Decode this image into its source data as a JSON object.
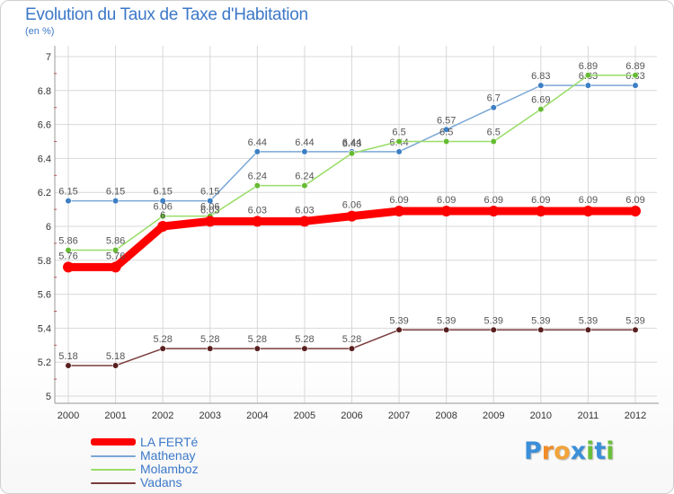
{
  "title": "Evolution du Taux de Taxe d'Habitation",
  "subtitle": "(en %)",
  "brand": {
    "letters": [
      "P",
      "r",
      "o",
      "x",
      "i",
      "t",
      "i"
    ],
    "colors": [
      "#3b8fd9",
      "#f28c28",
      "#f2a33a",
      "#3b8fd9",
      "#6bbf3a",
      "#3b8fd9",
      "#6bbf3a"
    ]
  },
  "chart_data": {
    "type": "line",
    "title": "Evolution du Taux de Taxe d'Habitation",
    "ylabel": "(en %)",
    "xlabel": "",
    "x": [
      "2000",
      "2001",
      "2002",
      "2003",
      "2004",
      "2005",
      "2006",
      "2007",
      "2008",
      "2009",
      "2010",
      "2011",
      "2012"
    ],
    "ylim": [
      5,
      7
    ],
    "yticks": [
      "5",
      "5.2",
      "5.4",
      "5.6",
      "5.8",
      "6",
      "6.2",
      "6.4",
      "6.6",
      "6.8",
      "7"
    ],
    "grid": true,
    "legend_position": "bottom-left",
    "series": [
      {
        "name": "LA FERTé",
        "color": "#ff0000",
        "point_color": "#ff0000",
        "emphasis": "thick",
        "values": [
          5.76,
          5.76,
          6,
          6.03,
          6.03,
          6.03,
          6.06,
          6.09,
          6.09,
          6.09,
          6.09,
          6.09,
          6.09
        ],
        "labels": [
          "5.76",
          "5.76",
          "6",
          "6.03",
          "6.03",
          "6.03",
          "6.06",
          "6.09",
          "6.09",
          "6.09",
          "6.09",
          "6.09",
          "6.09"
        ]
      },
      {
        "name": "Mathenay",
        "color": "#7aa7d6",
        "point_color": "#3c7fc4",
        "emphasis": "normal",
        "values": [
          6.15,
          6.15,
          6.15,
          6.15,
          6.44,
          6.44,
          6.44,
          6.44,
          6.57,
          6.7,
          6.83,
          6.83,
          6.83
        ],
        "labels": [
          "6.15",
          "6.15",
          "6.15",
          "6.15",
          "6.44",
          "6.44",
          "6.44",
          "6.44",
          "6.57",
          "6.7",
          "6.83",
          "6.83",
          "6.83"
        ]
      },
      {
        "name": "Molamboz",
        "color": "#99dd66",
        "point_color": "#66bb33",
        "emphasis": "normal",
        "values": [
          5.86,
          5.86,
          6.06,
          6.06,
          6.24,
          6.24,
          6.43,
          6.5,
          6.5,
          6.5,
          6.69,
          6.89,
          6.89
        ],
        "labels": [
          "5.86",
          "5.86",
          "6.06",
          "6.06",
          "6.24",
          "6.24",
          "6.43",
          "6.5",
          "6.5",
          "6.5",
          "6.69",
          "6.89",
          "6.89"
        ]
      },
      {
        "name": "Vadans",
        "color": "#7a3b3b",
        "point_color": "#5a1f1f",
        "emphasis": "normal",
        "values": [
          5.18,
          5.18,
          5.28,
          5.28,
          5.28,
          5.28,
          5.28,
          5.39,
          5.39,
          5.39,
          5.39,
          5.39,
          5.39
        ],
        "labels": [
          "5.18",
          "5.18",
          "5.28",
          "5.28",
          "5.28",
          "5.28",
          "5.28",
          "5.39",
          "5.39",
          "5.39",
          "5.39",
          "5.39",
          "5.39"
        ]
      }
    ]
  }
}
